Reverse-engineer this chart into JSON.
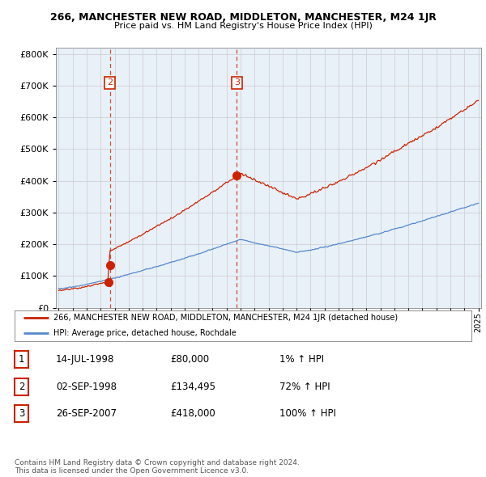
{
  "title": "266, MANCHESTER NEW ROAD, MIDDLETON, MANCHESTER, M24 1JR",
  "subtitle": "Price paid vs. HM Land Registry's House Price Index (HPI)",
  "year_start": 1995,
  "year_end": 2025,
  "ylim": [
    0,
    820000
  ],
  "yticks": [
    0,
    100000,
    200000,
    300000,
    400000,
    500000,
    600000,
    700000,
    800000
  ],
  "sale_dates_num": [
    1998.54,
    1998.67,
    2007.73
  ],
  "sale_prices": [
    80000,
    134495,
    418000
  ],
  "sale_labels": [
    "2",
    "3"
  ],
  "sale_label_indices": [
    1,
    2
  ],
  "property_line_color": "#cc2200",
  "hpi_line_color": "#5588cc",
  "chart_bg_color": "#e8f0f8",
  "legend_property": "266, MANCHESTER NEW ROAD, MIDDLETON, MANCHESTER, M24 1JR (detached house)",
  "legend_hpi": "HPI: Average price, detached house, Rochdale",
  "table_rows": [
    [
      "1",
      "14-JUL-1998",
      "£80,000",
      "1% ↑ HPI"
    ],
    [
      "2",
      "02-SEP-1998",
      "£134,495",
      "72% ↑ HPI"
    ],
    [
      "3",
      "26-SEP-2007",
      "£418,000",
      "100% ↑ HPI"
    ]
  ],
  "footer": "Contains HM Land Registry data © Crown copyright and database right 2024.\nThis data is licensed under the Open Government Licence v3.0.",
  "background_color": "#ffffff",
  "grid_color": "#cccccc"
}
